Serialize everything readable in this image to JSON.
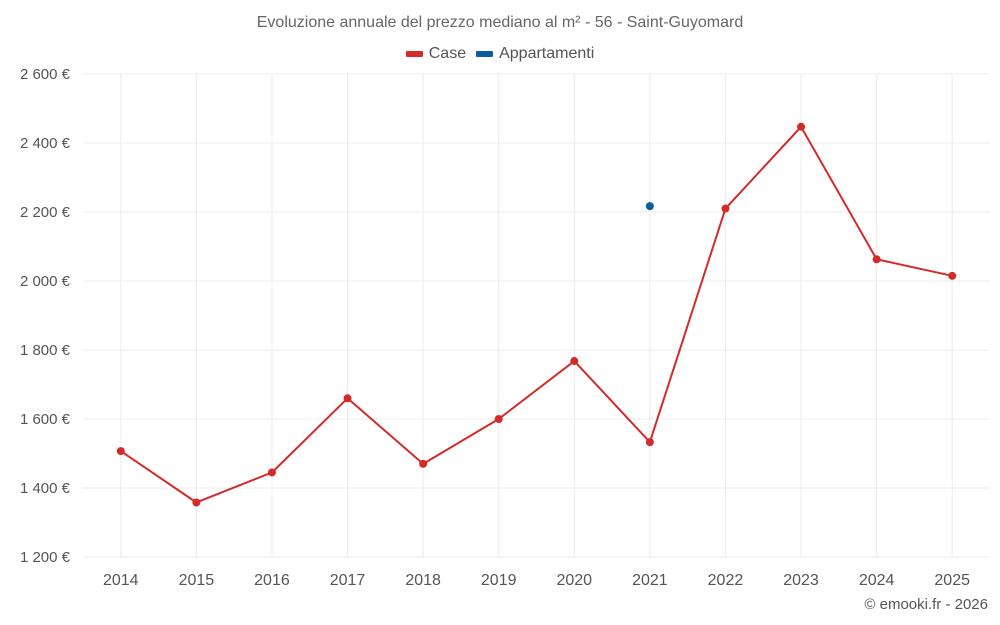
{
  "chart_data": {
    "type": "line",
    "title": "Evoluzione annuale del prezzo mediano al m² - 56 - Saint-Guyomard",
    "categories": [
      "2014",
      "2015",
      "2016",
      "2017",
      "2018",
      "2019",
      "2020",
      "2021",
      "2022",
      "2023",
      "2024",
      "2025"
    ],
    "series": [
      {
        "name": "Case",
        "color": "#d42a2a",
        "values": [
          1507,
          1358,
          1445,
          1660,
          1470,
          1600,
          1768,
          1533,
          2210,
          2447,
          2063,
          2015
        ]
      },
      {
        "name": "Appartamenti",
        "color": "#0a5f9a",
        "values": [
          null,
          null,
          null,
          null,
          null,
          null,
          null,
          2217,
          null,
          null,
          null,
          null
        ]
      }
    ],
    "yticks": [
      1200,
      1400,
      1600,
      1800,
      2000,
      2200,
      2400,
      2600
    ],
    "ylim": [
      1200,
      2600
    ],
    "ytick_labels": [
      "1 200 €",
      "1 400 €",
      "1 600 €",
      "1 800 €",
      "2 000 €",
      "2 200 €",
      "2 400 €",
      "2 600 €"
    ],
    "xlabel": "",
    "ylabel": "",
    "legend_position": "top-center",
    "grid": true
  },
  "credit": "© emooki.fr - 2026"
}
